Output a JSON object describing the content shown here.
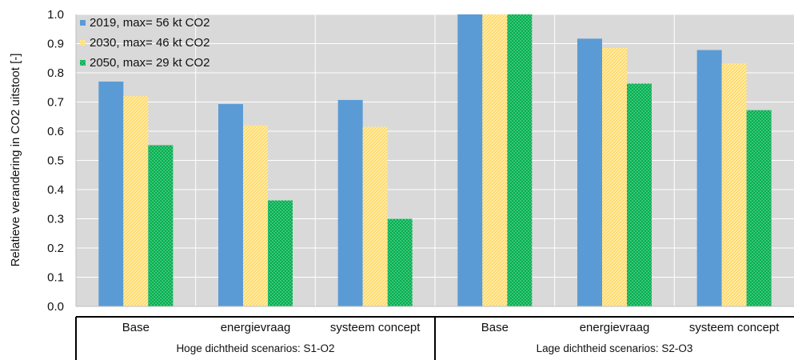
{
  "chart_data": {
    "type": "bar",
    "ylabel": "Relatieve verandering in CO2 uitstoot [-]",
    "ylim": [
      0,
      1.0
    ],
    "yticks": [
      "0.0",
      "0.1",
      "0.2",
      "0.3",
      "0.4",
      "0.5",
      "0.6",
      "0.7",
      "0.8",
      "0.9",
      "1.0"
    ],
    "grid": true,
    "legend_position": "top-left",
    "categories": [
      "Base",
      "energievraag",
      "systeem concept",
      "Base",
      "energievraag",
      "systeem concept"
    ],
    "groups": [
      {
        "label": "Hoge dichtheid scenarios:  S1-O2",
        "categories": [
          0,
          1,
          2
        ]
      },
      {
        "label": "Lage dichtheid scenarios:  S2-O3",
        "categories": [
          3,
          4,
          5
        ]
      }
    ],
    "series": [
      {
        "name": "2019, max= 56 kt CO2",
        "color": "#5b9bd5",
        "pattern": "solid",
        "values": [
          0.77,
          0.693,
          0.707,
          1.0,
          0.917,
          0.878
        ]
      },
      {
        "name": "2030, max= 46 kt CO2",
        "color": "#ffd966",
        "pattern": "diagonal-hatch",
        "values": [
          0.72,
          0.62,
          0.615,
          1.0,
          0.885,
          0.832
        ]
      },
      {
        "name": "2050, max= 29 kt CO2",
        "color": "#00b050",
        "pattern": "dots",
        "values": [
          0.552,
          0.363,
          0.3,
          1.0,
          0.763,
          0.672
        ]
      }
    ]
  }
}
